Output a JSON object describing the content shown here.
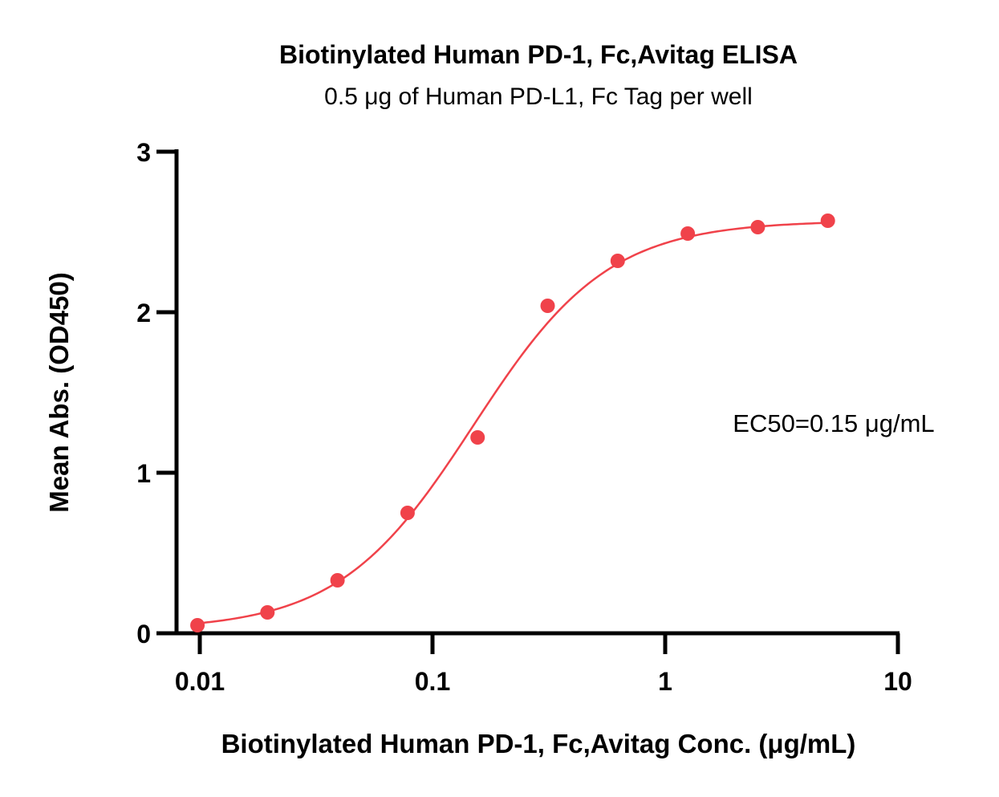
{
  "chart_data": {
    "type": "scatter",
    "title": "Biotinylated Human PD-1, Fc,Avitag ELISA",
    "subtitle": "0.5 μg of Human PD-L1, Fc Tag per well",
    "xlabel": "Biotinylated Human PD-1, Fc,Avitag Conc. (μg/mL)",
    "ylabel": "Mean Abs. (OD450)",
    "x_scale": "log",
    "xlim": [
      0.0075,
      10
    ],
    "ylim": [
      0,
      3
    ],
    "x_ticks": [
      {
        "value": 0.01,
        "label": "0.01"
      },
      {
        "value": 0.1,
        "label": "0.1"
      },
      {
        "value": 1,
        "label": "1"
      },
      {
        "value": 10,
        "label": "10"
      }
    ],
    "y_ticks": [
      {
        "value": 0,
        "label": "0"
      },
      {
        "value": 1,
        "label": "1"
      },
      {
        "value": 2,
        "label": "2"
      },
      {
        "value": 3,
        "label": "3"
      }
    ],
    "series": [
      {
        "color": "#f0424a",
        "x": [
          0.00977,
          0.01953,
          0.03906,
          0.07813,
          0.15625,
          0.3125,
          0.625,
          1.25,
          2.5,
          5
        ],
        "y": [
          0.05,
          0.13,
          0.33,
          0.75,
          1.22,
          2.04,
          2.32,
          2.49,
          2.53,
          2.57
        ],
        "fit": {
          "model": "4PL",
          "bottom": 0.02,
          "top": 2.57,
          "ec50": 0.15,
          "hill": 1.5
        }
      }
    ],
    "annotations": [
      {
        "text": "EC50=0.15 μg/mL"
      }
    ],
    "grid": false,
    "legend": "none"
  }
}
